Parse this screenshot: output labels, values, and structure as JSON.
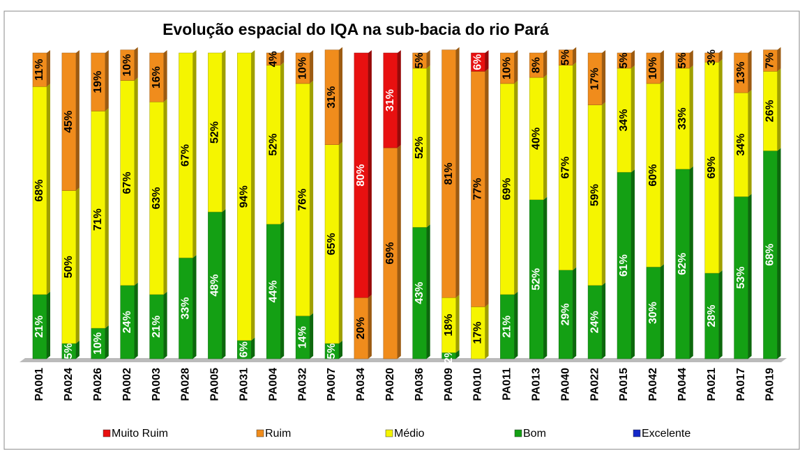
{
  "chart_data": {
    "type": "stacked_bar",
    "title": "Evolução espacial do IQA na sub-bacia do rio Pará",
    "categories": [
      "PA001",
      "PA024",
      "PA026",
      "PA002",
      "PA003",
      "PA028",
      "PA005",
      "PA031",
      "PA004",
      "PA032",
      "PA007",
      "PA034",
      "PA020",
      "PA036",
      "PA009",
      "PA010",
      "PA011",
      "PA013",
      "PA040",
      "PA022",
      "PA015",
      "PA042",
      "PA044",
      "PA021",
      "PA017",
      "PA019"
    ],
    "ylim": [
      0,
      100
    ],
    "series": [
      {
        "name": "Muito Ruim",
        "color": "#e81010",
        "label_color": "#ffffff",
        "values": [
          null,
          null,
          null,
          null,
          null,
          null,
          null,
          null,
          null,
          null,
          null,
          80,
          31,
          null,
          null,
          6,
          null,
          null,
          null,
          null,
          null,
          null,
          null,
          null,
          null,
          null
        ],
        "value_labels": [
          null,
          null,
          null,
          null,
          null,
          null,
          null,
          null,
          null,
          null,
          null,
          "80%",
          "31%",
          null,
          null,
          "6%",
          null,
          null,
          null,
          null,
          null,
          null,
          null,
          null,
          null,
          null
        ]
      },
      {
        "name": "Ruim",
        "color": "#f08c1c",
        "label_color": "#000000",
        "values": [
          11,
          45,
          19,
          10,
          16,
          null,
          null,
          null,
          4,
          10,
          31,
          20,
          69,
          5,
          81,
          77,
          10,
          8,
          5,
          17,
          5,
          10,
          5,
          3,
          13,
          7
        ],
        "value_labels": [
          "11%",
          "45%",
          "19%",
          "10%",
          "16%",
          null,
          null,
          null,
          "4%",
          "10%",
          "31%",
          "20%",
          "69%",
          "5%",
          "81%",
          "77%",
          "10%",
          "8%",
          "5%",
          "17%",
          "5%",
          "10%",
          "5%",
          "3%",
          "13%",
          "7%"
        ]
      },
      {
        "name": "Médio",
        "color": "#f5f500",
        "label_color": "#000000",
        "values": [
          68,
          50,
          71,
          67,
          63,
          67,
          52,
          94,
          52,
          76,
          65,
          null,
          null,
          52,
          18,
          17,
          69,
          40,
          67,
          59,
          34,
          60,
          33,
          69,
          34,
          26
        ],
        "value_labels": [
          "68%",
          "50%",
          "71%",
          "67%",
          "63%",
          "67%",
          "52%",
          "94%",
          "52%",
          "76%",
          "65%",
          null,
          null,
          "52%",
          "18%",
          "17%",
          "69%",
          "40%",
          "67%",
          "59%",
          "34%",
          "60%",
          "33%",
          "69%",
          "34%",
          "26%"
        ]
      },
      {
        "name": "Bom",
        "color": "#14a014",
        "label_color": "#ffffff",
        "values": [
          21,
          5,
          10,
          24,
          21,
          33,
          48,
          6,
          44,
          14,
          5,
          null,
          null,
          43,
          2,
          null,
          21,
          52,
          29,
          24,
          61,
          30,
          62,
          28,
          53,
          68
        ],
        "value_labels": [
          "21%",
          "5%",
          "10%",
          "24%",
          "21%",
          "33%",
          "48%",
          "6%",
          "44%",
          "14%",
          "5%",
          null,
          null,
          "43%",
          "2%",
          null,
          "21%",
          "52%",
          "29%",
          "24%",
          "61%",
          "30%",
          "62%",
          "28%",
          "53%",
          "68%"
        ]
      },
      {
        "name": "Excelente",
        "color": "#1428c8",
        "label_color": "#ffffff",
        "values": [
          null,
          null,
          null,
          null,
          null,
          null,
          null,
          null,
          null,
          null,
          null,
          null,
          null,
          null,
          null,
          null,
          null,
          null,
          null,
          null,
          null,
          null,
          null,
          null,
          null,
          null
        ],
        "value_labels": [
          null,
          null,
          null,
          null,
          null,
          null,
          null,
          null,
          null,
          null,
          null,
          null,
          null,
          null,
          null,
          null,
          null,
          null,
          null,
          null,
          null,
          null,
          null,
          null,
          null,
          null
        ]
      }
    ]
  }
}
